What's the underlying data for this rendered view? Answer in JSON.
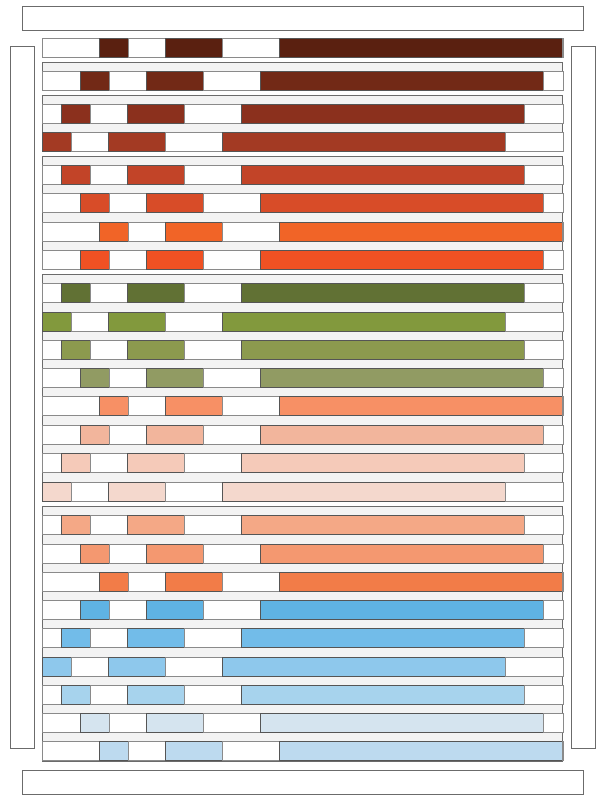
{
  "rows": [
    {
      "color": "#5a2010"
    },
    {
      "color": "#722916"
    },
    {
      "color": "#8b301d"
    },
    {
      "color": "#a33a23"
    },
    {
      "color": "#c24428"
    },
    {
      "color": "#d84c28"
    },
    {
      "color": "#f16427"
    },
    {
      "color": "#f05123"
    },
    {
      "color": "#617134"
    },
    {
      "color": "#82993d"
    },
    {
      "color": "#8c9a4e"
    },
    {
      "color": "#919b63"
    },
    {
      "color": "#f79065"
    },
    {
      "color": "#f2b59c"
    },
    {
      "color": "#f5cab9"
    },
    {
      "color": "#f4d8cd"
    },
    {
      "color": "#f4a886"
    },
    {
      "color": "#f49870"
    },
    {
      "color": "#f27c48"
    },
    {
      "color": "#5fb3e3"
    },
    {
      "color": "#72bce9"
    },
    {
      "color": "#8ec8ec"
    },
    {
      "color": "#a7d3ed"
    },
    {
      "color": "#d5e4ef"
    },
    {
      "color": "#bddaef"
    }
  ]
}
